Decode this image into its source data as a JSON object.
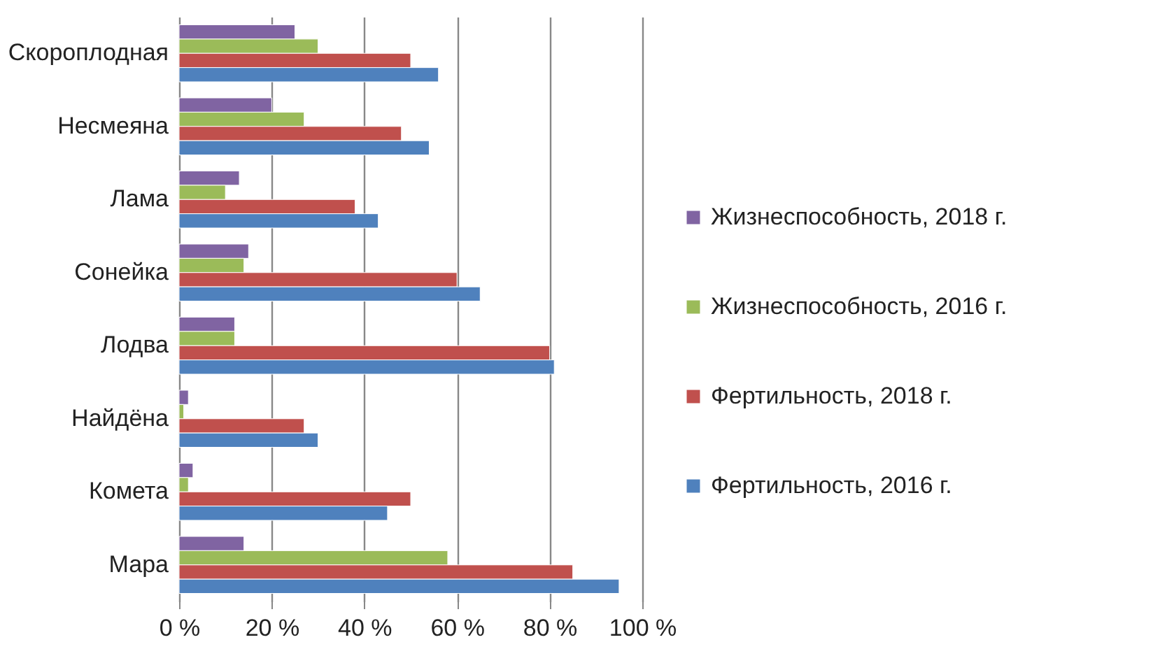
{
  "chart_data": {
    "type": "bar",
    "orientation": "horizontal",
    "categories": [
      "Скороплодная",
      "Несмеяна",
      "Лама",
      "Сонейка",
      "Лодва",
      "Найдёна",
      "Комета",
      "Мара"
    ],
    "series": [
      {
        "name": "Жизнеспособность, 2018 г.",
        "color": "#8064a2",
        "values": [
          25,
          20,
          13,
          15,
          12,
          2,
          3,
          14
        ]
      },
      {
        "name": "Жизнеспособность, 2016 г.",
        "color": "#9bbb59",
        "values": [
          30,
          27,
          10,
          14,
          12,
          1,
          2,
          58
        ]
      },
      {
        "name": "Фертильность, 2018 г.",
        "color": "#c0504d",
        "values": [
          50,
          48,
          38,
          60,
          80,
          27,
          50,
          85
        ]
      },
      {
        "name": "Фертильность, 2016 г.",
        "color": "#4f81bd",
        "values": [
          56,
          54,
          43,
          65,
          81,
          30,
          45,
          95
        ]
      }
    ],
    "xlim": [
      0,
      100
    ],
    "xticks": [
      {
        "value": 0,
        "label": "0 %"
      },
      {
        "value": 20,
        "label": "20 %"
      },
      {
        "value": 40,
        "label": "40 %"
      },
      {
        "value": 60,
        "label": "60 %"
      },
      {
        "value": 80,
        "label": "80 %"
      },
      {
        "value": 100,
        "label": "100 %"
      }
    ],
    "grid": "x",
    "legend": "right"
  }
}
